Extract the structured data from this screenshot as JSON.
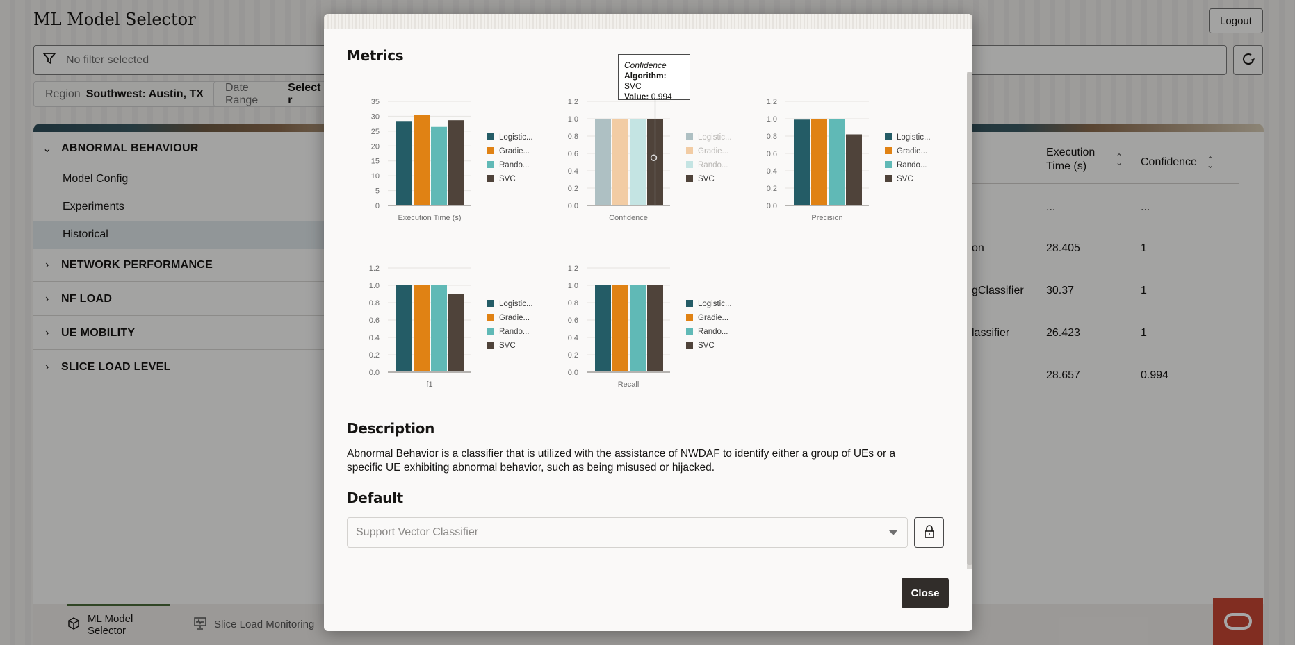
{
  "app": {
    "title": "ML Model Selector",
    "logout_label": "Logout",
    "filter_placeholder": "No filter selected",
    "chips": [
      {
        "label": "Region",
        "value": "Southwest: Austin, TX"
      },
      {
        "label": "Date Range",
        "value": "Select r"
      }
    ]
  },
  "sidebar": {
    "groups": [
      {
        "label": "ABNORMAL BEHAVIOUR",
        "expanded": true,
        "items": [
          {
            "label": "Model Config"
          },
          {
            "label": "Experiments"
          },
          {
            "label": "Historical",
            "active": true
          }
        ]
      },
      {
        "label": "NETWORK PERFORMANCE",
        "expanded": false
      },
      {
        "label": "NF LOAD",
        "expanded": false
      },
      {
        "label": "UE MOBILITY",
        "expanded": false
      },
      {
        "label": "SLICE LOAD LEVEL",
        "expanded": false
      }
    ]
  },
  "table": {
    "columns": [
      "Execution Time (s)",
      "Confidence"
    ],
    "rows": [
      {
        "algorithm_fragment": "",
        "execution_time": "...",
        "confidence": "..."
      },
      {
        "algorithm_fragment": "on",
        "execution_time": "28.405",
        "confidence": "1"
      },
      {
        "algorithm_fragment": "gClassifier",
        "execution_time": "30.37",
        "confidence": "1"
      },
      {
        "algorithm_fragment": "lassifier",
        "execution_time": "26.423",
        "confidence": "1"
      },
      {
        "algorithm_fragment": "",
        "execution_time": "28.657",
        "confidence": "0.994"
      }
    ]
  },
  "footer": {
    "tabs": [
      {
        "label": "ML Model Selector",
        "icon": "model-cube-icon",
        "active": true
      },
      {
        "label": "Slice Load Monitoring",
        "icon": "monitor-chart-icon",
        "active": false
      }
    ]
  },
  "modal": {
    "metrics_title": "Metrics",
    "description_title": "Description",
    "description_text": "Abnormal Behavior is a classifier that is utilized with the assistance of NWDAF to identify either a group of UEs or a specific UE exhibiting abnormal behavior, such as being misused or hijacked.",
    "default_title": "Default",
    "default_select_value": "Support Vector Classifier",
    "close_label": "Close",
    "tooltip": {
      "title": "Confidence",
      "algorithm_label": "Algorithm:",
      "algorithm_value": "SVC",
      "value_label": "Value:",
      "value_value": "0.994"
    }
  },
  "colors": {
    "series": [
      "#245c66",
      "#e08214",
      "#60b9b6",
      "#4f433a"
    ],
    "series_faded": [
      "#aec0c3",
      "#f2cca4",
      "#c4e4e3",
      "#4f433a"
    ],
    "close_button": "#312d2a",
    "brand": "#c74634"
  },
  "chart_data": [
    {
      "type": "bar",
      "title": "",
      "xlabel": "Execution Time (s)",
      "ylabel": "",
      "categories": [
        "Execution Time (s)"
      ],
      "series": [
        {
          "name": "Logistic...",
          "values": [
            28.405
          ]
        },
        {
          "name": "Gradie...",
          "values": [
            30.37
          ]
        },
        {
          "name": "Rando...",
          "values": [
            26.423
          ]
        },
        {
          "name": "SVC",
          "values": [
            28.657
          ]
        }
      ],
      "yticks": [
        "0",
        "5",
        "10",
        "15",
        "20",
        "25",
        "30",
        "35"
      ],
      "ylim": [
        0,
        35
      ],
      "grid": true,
      "legend_position": "right"
    },
    {
      "type": "bar",
      "title": "",
      "xlabel": "Confidence",
      "ylabel": "",
      "categories": [
        "Confidence"
      ],
      "series": [
        {
          "name": "Logistic...",
          "values": [
            1
          ]
        },
        {
          "name": "Gradie...",
          "values": [
            1
          ]
        },
        {
          "name": "Rando...",
          "values": [
            1
          ]
        },
        {
          "name": "SVC",
          "values": [
            0.994
          ]
        }
      ],
      "yticks": [
        "0.0",
        "0.2",
        "0.4",
        "0.6",
        "0.8",
        "1.0",
        "1.2"
      ],
      "ylim": [
        0,
        1.2
      ],
      "grid": true,
      "legend_position": "right",
      "highlighted_series": "SVC"
    },
    {
      "type": "bar",
      "title": "",
      "xlabel": "Precision",
      "ylabel": "",
      "categories": [
        "Precision"
      ],
      "series": [
        {
          "name": "Logistic...",
          "values": [
            0.99
          ]
        },
        {
          "name": "Gradie...",
          "values": [
            1
          ]
        },
        {
          "name": "Rando...",
          "values": [
            1
          ]
        },
        {
          "name": "SVC",
          "values": [
            0.82
          ]
        }
      ],
      "yticks": [
        "0.0",
        "0.2",
        "0.4",
        "0.6",
        "0.8",
        "1.0",
        "1.2"
      ],
      "ylim": [
        0,
        1.2
      ],
      "grid": true,
      "legend_position": "right"
    },
    {
      "type": "bar",
      "title": "",
      "xlabel": "f1",
      "ylabel": "",
      "categories": [
        "f1"
      ],
      "series": [
        {
          "name": "Logistic...",
          "values": [
            1
          ]
        },
        {
          "name": "Gradie...",
          "values": [
            1
          ]
        },
        {
          "name": "Rando...",
          "values": [
            1
          ]
        },
        {
          "name": "SVC",
          "values": [
            0.9
          ]
        }
      ],
      "yticks": [
        "0.0",
        "0.2",
        "0.4",
        "0.6",
        "0.8",
        "1.0",
        "1.2"
      ],
      "ylim": [
        0,
        1.2
      ],
      "grid": true,
      "legend_position": "right"
    },
    {
      "type": "bar",
      "title": "",
      "xlabel": "Recall",
      "ylabel": "",
      "categories": [
        "Recall"
      ],
      "series": [
        {
          "name": "Logistic...",
          "values": [
            1
          ]
        },
        {
          "name": "Gradie...",
          "values": [
            1
          ]
        },
        {
          "name": "Rando...",
          "values": [
            1
          ]
        },
        {
          "name": "SVC",
          "values": [
            1
          ]
        }
      ],
      "yticks": [
        "0.0",
        "0.2",
        "0.4",
        "0.6",
        "0.8",
        "1.0",
        "1.2"
      ],
      "ylim": [
        0,
        1.2
      ],
      "grid": true,
      "legend_position": "right"
    }
  ]
}
